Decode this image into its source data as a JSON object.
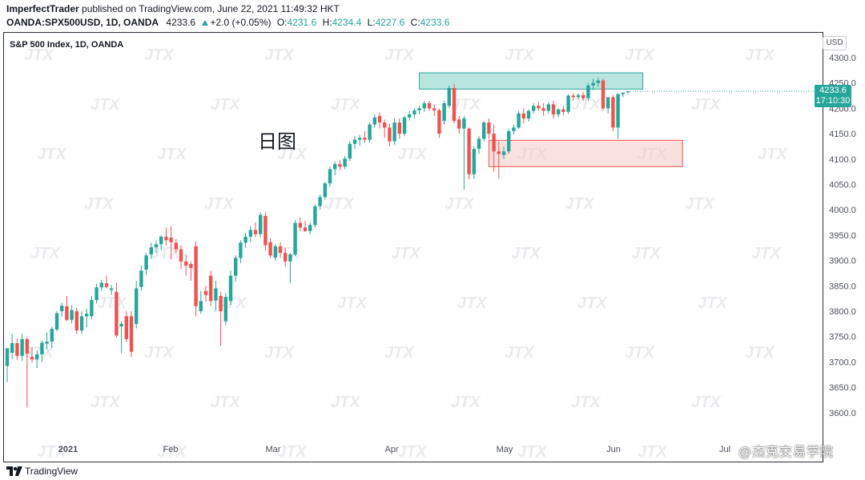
{
  "header": {
    "author": "ImperfectTrader",
    "published": "published on TradingView.com, June 22, 2021 11:49:32 HKT",
    "symbol": "OANDA:SPX500USD, 1D, OANDA",
    "last": "4233.6",
    "change": "+2.0 (+0.05%)",
    "o_label": "O:",
    "o_value": "4231.6",
    "h_label": "H:",
    "h_value": "4234.4",
    "l_label": "L:",
    "l_value": "4227.6",
    "c_label": "C:",
    "c_value": "4233.6"
  },
  "chart_title": "S&P 500 Index, 1D, OANDA",
  "annotation": "日图",
  "currency": "USD",
  "price_badge": {
    "price": "4233.6",
    "countdown": "17:10:30"
  },
  "footer": {
    "brand": "TradingView",
    "watermark": "@杰克交易学院"
  },
  "watermark_text": "JTX",
  "colors": {
    "up": "#26a69a",
    "down": "#ef5350",
    "resistance_zone": "#7fcfc5",
    "support_zone": "#f7c6c6"
  },
  "chart_data": {
    "type": "candlestick",
    "y_axis_labels": [
      "4300.0",
      "4250.0",
      "4200.0",
      "4150.0",
      "4100.0",
      "4050.0",
      "4000.0",
      "3950.0",
      "3900.0",
      "3850.0",
      "3800.0",
      "3750.0",
      "3700.0",
      "3650.0",
      "3600.0"
    ],
    "x_axis_labels": [
      "2021",
      "Feb",
      "Mar",
      "Apr",
      "May",
      "Jun",
      "Jul"
    ],
    "ylim": [
      3550,
      4312
    ],
    "zones": [
      {
        "name": "resistance",
        "y_low": 4238,
        "y_high": 4270,
        "x_start": 83,
        "x_end": 128
      },
      {
        "name": "support",
        "y_low": 4085,
        "y_high": 4137,
        "x_start": 97,
        "x_end": 136
      }
    ],
    "candles": [
      {
        "o": 3692,
        "h": 3727,
        "l": 3660,
        "c": 3727
      },
      {
        "o": 3718,
        "h": 3755,
        "l": 3705,
        "c": 3737
      },
      {
        "o": 3737,
        "h": 3746,
        "l": 3704,
        "c": 3712
      },
      {
        "o": 3712,
        "h": 3755,
        "l": 3702,
        "c": 3745
      },
      {
        "o": 3745,
        "h": 3750,
        "l": 3610,
        "c": 3716
      },
      {
        "o": 3710,
        "h": 3728,
        "l": 3698,
        "c": 3705
      },
      {
        "o": 3705,
        "h": 3722,
        "l": 3688,
        "c": 3715
      },
      {
        "o": 3715,
        "h": 3742,
        "l": 3700,
        "c": 3738
      },
      {
        "o": 3736,
        "h": 3758,
        "l": 3725,
        "c": 3740
      },
      {
        "o": 3740,
        "h": 3770,
        "l": 3728,
        "c": 3765
      },
      {
        "o": 3764,
        "h": 3800,
        "l": 3760,
        "c": 3796
      },
      {
        "o": 3800,
        "h": 3817,
        "l": 3789,
        "c": 3811
      },
      {
        "o": 3810,
        "h": 3830,
        "l": 3780,
        "c": 3783
      },
      {
        "o": 3783,
        "h": 3812,
        "l": 3776,
        "c": 3802
      },
      {
        "o": 3800,
        "h": 3807,
        "l": 3755,
        "c": 3762
      },
      {
        "o": 3762,
        "h": 3800,
        "l": 3755,
        "c": 3790
      },
      {
        "o": 3790,
        "h": 3805,
        "l": 3768,
        "c": 3795
      },
      {
        "o": 3790,
        "h": 3830,
        "l": 3784,
        "c": 3822
      },
      {
        "o": 3822,
        "h": 3854,
        "l": 3815,
        "c": 3847
      },
      {
        "o": 3847,
        "h": 3862,
        "l": 3840,
        "c": 3856
      },
      {
        "o": 3855,
        "h": 3870,
        "l": 3845,
        "c": 3848
      },
      {
        "o": 3842,
        "h": 3852,
        "l": 3832,
        "c": 3845
      },
      {
        "o": 3838,
        "h": 3856,
        "l": 3748,
        "c": 3752
      },
      {
        "o": 3770,
        "h": 3780,
        "l": 3717,
        "c": 3775
      },
      {
        "o": 3790,
        "h": 3800,
        "l": 3740,
        "c": 3745
      },
      {
        "o": 3790,
        "h": 3800,
        "l": 3710,
        "c": 3720
      },
      {
        "o": 3775,
        "h": 3860,
        "l": 3766,
        "c": 3845
      },
      {
        "o": 3848,
        "h": 3890,
        "l": 3840,
        "c": 3880
      },
      {
        "o": 3882,
        "h": 3914,
        "l": 3871,
        "c": 3910
      },
      {
        "o": 3912,
        "h": 3935,
        "l": 3903,
        "c": 3926
      },
      {
        "o": 3926,
        "h": 3940,
        "l": 3915,
        "c": 3932
      },
      {
        "o": 3932,
        "h": 3950,
        "l": 3920,
        "c": 3947
      },
      {
        "o": 3947,
        "h": 3965,
        "l": 3930,
        "c": 3940
      },
      {
        "o": 3945,
        "h": 3968,
        "l": 3902,
        "c": 3936
      },
      {
        "o": 3935,
        "h": 3942,
        "l": 3915,
        "c": 3922
      },
      {
        "o": 3922,
        "h": 3930,
        "l": 3883,
        "c": 3898
      },
      {
        "o": 3898,
        "h": 3912,
        "l": 3870,
        "c": 3890
      },
      {
        "o": 3893,
        "h": 3898,
        "l": 3860,
        "c": 3885
      },
      {
        "o": 3928,
        "h": 3938,
        "l": 3790,
        "c": 3810
      },
      {
        "o": 3800,
        "h": 3840,
        "l": 3795,
        "c": 3820
      },
      {
        "o": 3840,
        "h": 3850,
        "l": 3818,
        "c": 3832
      },
      {
        "o": 3870,
        "h": 3880,
        "l": 3810,
        "c": 3820
      },
      {
        "o": 3821,
        "h": 3860,
        "l": 3800,
        "c": 3845
      },
      {
        "o": 3830,
        "h": 3838,
        "l": 3732,
        "c": 3800
      },
      {
        "o": 3780,
        "h": 3836,
        "l": 3772,
        "c": 3828
      },
      {
        "o": 3820,
        "h": 3880,
        "l": 3812,
        "c": 3870
      },
      {
        "o": 3870,
        "h": 3910,
        "l": 3858,
        "c": 3905
      },
      {
        "o": 3905,
        "h": 3940,
        "l": 3895,
        "c": 3935
      },
      {
        "o": 3935,
        "h": 3955,
        "l": 3925,
        "c": 3947
      },
      {
        "o": 3947,
        "h": 3968,
        "l": 3936,
        "c": 3960
      },
      {
        "o": 3960,
        "h": 3975,
        "l": 3946,
        "c": 3952
      },
      {
        "o": 3952,
        "h": 3995,
        "l": 3946,
        "c": 3990
      },
      {
        "o": 3988,
        "h": 3995,
        "l": 3920,
        "c": 3930
      },
      {
        "o": 3936,
        "h": 3944,
        "l": 3905,
        "c": 3910
      },
      {
        "o": 3906,
        "h": 3932,
        "l": 3900,
        "c": 3928
      },
      {
        "o": 3928,
        "h": 3936,
        "l": 3905,
        "c": 3915
      },
      {
        "o": 3915,
        "h": 3925,
        "l": 3888,
        "c": 3898
      },
      {
        "o": 3898,
        "h": 3915,
        "l": 3855,
        "c": 3912
      },
      {
        "o": 3912,
        "h": 3980,
        "l": 3908,
        "c": 3974
      },
      {
        "o": 3974,
        "h": 3985,
        "l": 3958,
        "c": 3965
      },
      {
        "o": 3965,
        "h": 3978,
        "l": 3956,
        "c": 3958
      },
      {
        "o": 3958,
        "h": 3975,
        "l": 3952,
        "c": 3970
      },
      {
        "o": 3970,
        "h": 4010,
        "l": 3965,
        "c": 4007
      },
      {
        "o": 4007,
        "h": 4030,
        "l": 4000,
        "c": 4025
      },
      {
        "o": 4025,
        "h": 4055,
        "l": 4020,
        "c": 4052
      },
      {
        "o": 4052,
        "h": 4085,
        "l": 4045,
        "c": 4080
      },
      {
        "o": 4080,
        "h": 4095,
        "l": 4068,
        "c": 4090
      },
      {
        "o": 4090,
        "h": 4098,
        "l": 4078,
        "c": 4085
      },
      {
        "o": 4085,
        "h": 4106,
        "l": 4080,
        "c": 4101
      },
      {
        "o": 4101,
        "h": 4135,
        "l": 4096,
        "c": 4130
      },
      {
        "o": 4130,
        "h": 4145,
        "l": 4120,
        "c": 4138
      },
      {
        "o": 4138,
        "h": 4148,
        "l": 4126,
        "c": 4142
      },
      {
        "o": 4142,
        "h": 4155,
        "l": 4132,
        "c": 4138
      },
      {
        "o": 4138,
        "h": 4172,
        "l": 4132,
        "c": 4168
      },
      {
        "o": 4168,
        "h": 4188,
        "l": 4162,
        "c": 4182
      },
      {
        "o": 4185,
        "h": 4192,
        "l": 4160,
        "c": 4172
      },
      {
        "o": 4172,
        "h": 4178,
        "l": 4142,
        "c": 4162
      },
      {
        "o": 4162,
        "h": 4170,
        "l": 4125,
        "c": 4135
      },
      {
        "o": 4135,
        "h": 4180,
        "l": 4128,
        "c": 4172
      },
      {
        "o": 4172,
        "h": 4180,
        "l": 4140,
        "c": 4150
      },
      {
        "o": 4150,
        "h": 4185,
        "l": 4145,
        "c": 4182
      },
      {
        "o": 4182,
        "h": 4195,
        "l": 4176,
        "c": 4188
      },
      {
        "o": 4188,
        "h": 4200,
        "l": 4180,
        "c": 4196
      },
      {
        "o": 4196,
        "h": 4205,
        "l": 4188,
        "c": 4200
      },
      {
        "o": 4200,
        "h": 4215,
        "l": 4193,
        "c": 4210
      },
      {
        "o": 4210,
        "h": 4215,
        "l": 4195,
        "c": 4200
      },
      {
        "o": 4200,
        "h": 4208,
        "l": 4185,
        "c": 4196
      },
      {
        "o": 4196,
        "h": 4200,
        "l": 4142,
        "c": 4150
      },
      {
        "o": 4175,
        "h": 4215,
        "l": 4168,
        "c": 4210
      },
      {
        "o": 4205,
        "h": 4245,
        "l": 4200,
        "c": 4240
      },
      {
        "o": 4240,
        "h": 4248,
        "l": 4170,
        "c": 4175
      },
      {
        "o": 4178,
        "h": 4185,
        "l": 4150,
        "c": 4160
      },
      {
        "o": 4160,
        "h": 4185,
        "l": 4040,
        "c": 4180
      },
      {
        "o": 4160,
        "h": 4162,
        "l": 4060,
        "c": 4070
      },
      {
        "o": 4070,
        "h": 4125,
        "l": 4060,
        "c": 4120
      },
      {
        "o": 4120,
        "h": 4145,
        "l": 4110,
        "c": 4140
      },
      {
        "o": 4140,
        "h": 4175,
        "l": 4135,
        "c": 4172
      },
      {
        "o": 4172,
        "h": 4180,
        "l": 4140,
        "c": 4150
      },
      {
        "o": 4150,
        "h": 4168,
        "l": 4075,
        "c": 4115
      },
      {
        "o": 4115,
        "h": 4135,
        "l": 4062,
        "c": 4110
      },
      {
        "o": 4108,
        "h": 4125,
        "l": 4100,
        "c": 4115
      },
      {
        "o": 4115,
        "h": 4160,
        "l": 4110,
        "c": 4155
      },
      {
        "o": 4155,
        "h": 4168,
        "l": 4148,
        "c": 4162
      },
      {
        "o": 4162,
        "h": 4195,
        "l": 4160,
        "c": 4190
      },
      {
        "o": 4190,
        "h": 4200,
        "l": 4170,
        "c": 4180
      },
      {
        "o": 4180,
        "h": 4198,
        "l": 4174,
        "c": 4195
      },
      {
        "o": 4195,
        "h": 4210,
        "l": 4190,
        "c": 4205
      },
      {
        "o": 4205,
        "h": 4212,
        "l": 4195,
        "c": 4200
      },
      {
        "o": 4200,
        "h": 4210,
        "l": 4186,
        "c": 4195
      },
      {
        "o": 4195,
        "h": 4212,
        "l": 4190,
        "c": 4208
      },
      {
        "o": 4208,
        "h": 4215,
        "l": 4180,
        "c": 4188
      },
      {
        "o": 4188,
        "h": 4200,
        "l": 4182,
        "c": 4198
      },
      {
        "o": 4198,
        "h": 4205,
        "l": 4186,
        "c": 4193
      },
      {
        "o": 4193,
        "h": 4228,
        "l": 4189,
        "c": 4225
      },
      {
        "o": 4225,
        "h": 4230,
        "l": 4215,
        "c": 4222
      },
      {
        "o": 4222,
        "h": 4230,
        "l": 4218,
        "c": 4226
      },
      {
        "o": 4226,
        "h": 4232,
        "l": 4215,
        "c": 4220
      },
      {
        "o": 4220,
        "h": 4250,
        "l": 4215,
        "c": 4245
      },
      {
        "o": 4245,
        "h": 4258,
        "l": 4236,
        "c": 4250
      },
      {
        "o": 4250,
        "h": 4260,
        "l": 4242,
        "c": 4255
      },
      {
        "o": 4255,
        "h": 4258,
        "l": 4195,
        "c": 4200
      },
      {
        "o": 4200,
        "h": 4222,
        "l": 4190,
        "c": 4222
      },
      {
        "o": 4222,
        "h": 4226,
        "l": 4155,
        "c": 4162
      },
      {
        "o": 4162,
        "h": 4230,
        "l": 4140,
        "c": 4228
      },
      {
        "o": 4228,
        "h": 4231,
        "l": 4222,
        "c": 4231
      },
      {
        "o": 4231.6,
        "h": 4234.4,
        "l": 4227.6,
        "c": 4233.6
      }
    ]
  }
}
